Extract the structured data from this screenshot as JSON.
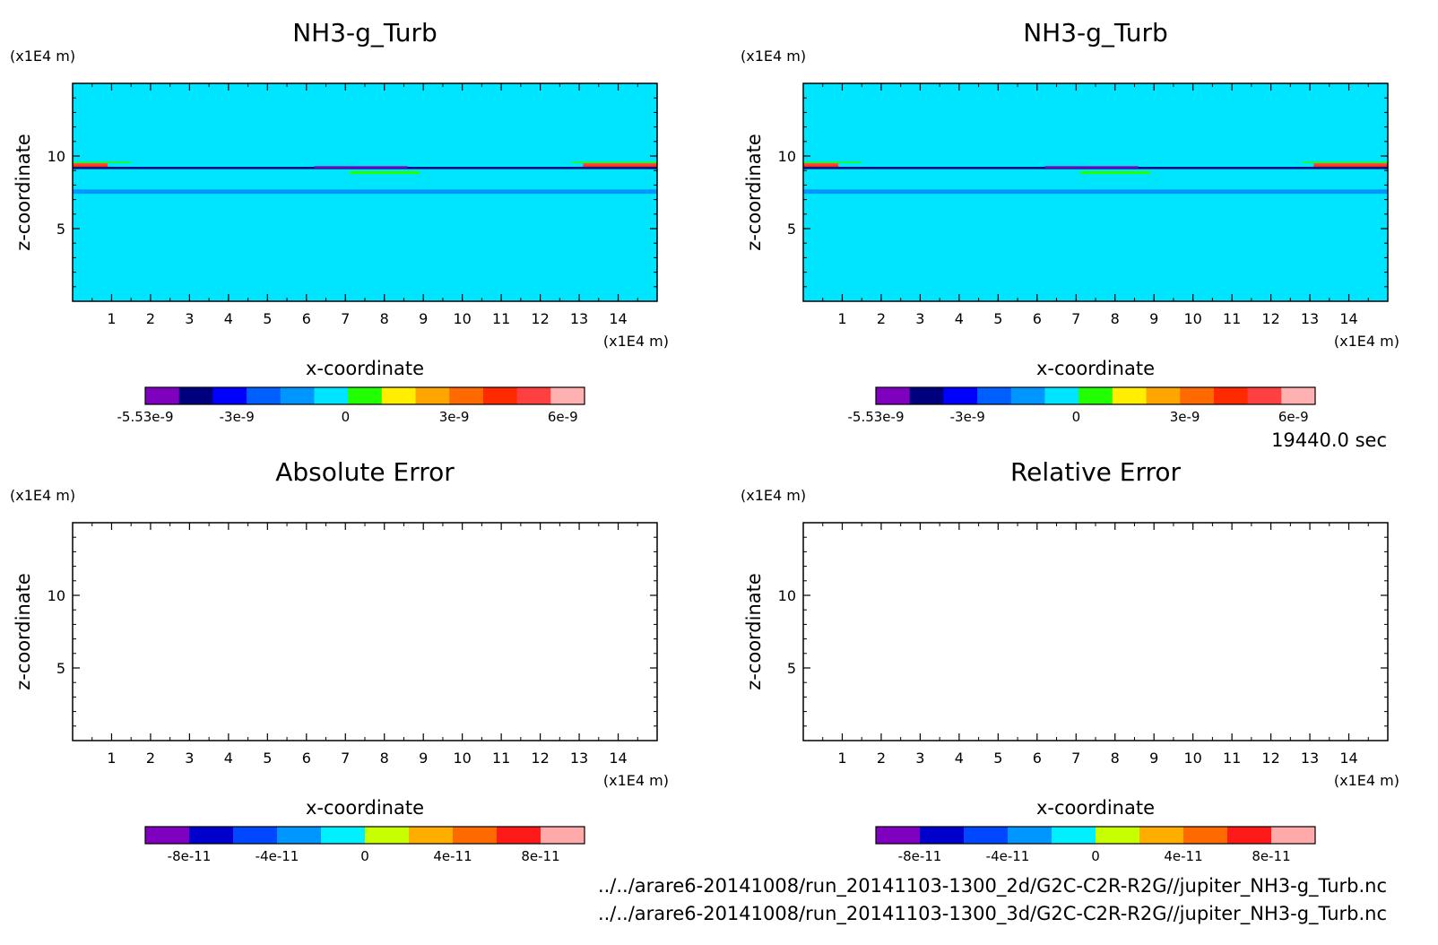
{
  "time_label": "19440.0 sec",
  "file_paths": [
    "../../arare6-20141008/run_20141103-1300_2d/G2C-C2R-R2G//jupiter_NH3-g_Turb.nc",
    "../../arare6-20141008/run_20141103-1300_3d/G2C-C2R-R2G//jupiter_NH3-g_Turb.nc"
  ],
  "palettes": {
    "field": [
      "#7f00bf",
      "#00007f",
      "#0000ff",
      "#0060ff",
      "#0096ff",
      "#00e5ff",
      "#22ff00",
      "#ffee00",
      "#ffa500",
      "#ff6a00",
      "#ff2a00",
      "#ff4040",
      "#ffb0b0"
    ],
    "error": [
      "#7f00bf",
      "#0000cd",
      "#0048ff",
      "#0096ff",
      "#00f0ff",
      "#c8ff00",
      "#ffae00",
      "#ff6a00",
      "#ff1a1a",
      "#ffaaaa"
    ]
  },
  "chart_data": [
    {
      "type": "heatmap",
      "title": "NH3-g_Turb",
      "xlabel": "x-coordinate",
      "ylabel": "z-coordinate",
      "x_unit": "(x1E4 m)",
      "y_unit": "(x1E4 m)",
      "xlim": [
        0,
        15
      ],
      "ylim": [
        0,
        15
      ],
      "x_ticks": [
        1,
        2,
        3,
        4,
        5,
        6,
        7,
        8,
        9,
        10,
        11,
        12,
        13,
        14
      ],
      "y_ticks": [
        5,
        10
      ],
      "levels_min": -5.53e-09,
      "levels_max": 6.6e-09,
      "colorbar_ticks": [
        {
          "value": -5.53e-09,
          "label": "-5.53e-9"
        },
        {
          "value": -3e-09,
          "label": "-3e-9"
        },
        {
          "value": 0,
          "label": "0"
        },
        {
          "value": 3e-09,
          "label": "3e-9"
        },
        {
          "value": 6e-09,
          "label": "6e-9"
        }
      ],
      "palette": "field",
      "background_value": 0,
      "features": [
        {
          "kind": "band",
          "x0": 0,
          "x1": 15,
          "z0": 11.35,
          "z1": 11.85,
          "v": -5e-10
        },
        {
          "kind": "band",
          "x0": 4,
          "x1": 10.5,
          "z0": 11.8,
          "z1": 12.1,
          "v": -5e-10
        },
        {
          "kind": "band",
          "x0": 0,
          "x1": 15,
          "z0": 9.2,
          "z1": 9.55,
          "v": -5e-10
        },
        {
          "kind": "band",
          "x0": 0,
          "x1": 15,
          "z0": 8.65,
          "z1": 9.2,
          "v": -5e-10
        },
        {
          "kind": "band",
          "x0": 0,
          "x1": 15,
          "z0": 7.75,
          "z1": 8.3,
          "v": -5e-10
        },
        {
          "kind": "band",
          "x0": 0,
          "x1": 15,
          "z0": 7.4,
          "z1": 7.7,
          "v": -1.5e-09
        },
        {
          "kind": "band",
          "x0": 0,
          "x1": 15,
          "z0": 9.1,
          "z1": 9.25,
          "v": -4.5e-09
        },
        {
          "kind": "band",
          "x0": 0,
          "x1": 0.9,
          "z0": 9.35,
          "z1": 9.5,
          "v": 5e-09
        },
        {
          "kind": "band",
          "x0": 0,
          "x1": 0.9,
          "z0": 9.25,
          "z1": 9.35,
          "v": 4e-09
        },
        {
          "kind": "band",
          "x0": 13.1,
          "x1": 15,
          "z0": 9.35,
          "z1": 9.5,
          "v": 5e-09
        },
        {
          "kind": "band",
          "x0": 13.1,
          "x1": 15,
          "z0": 9.25,
          "z1": 9.35,
          "v": 4e-09
        },
        {
          "kind": "band",
          "x0": 0,
          "x1": 1.5,
          "z0": 9.5,
          "z1": 9.6,
          "v": 1e-09
        },
        {
          "kind": "band",
          "x0": 12.8,
          "x1": 15,
          "z0": 9.5,
          "z1": 9.6,
          "v": 1e-09
        },
        {
          "kind": "band",
          "x0": 6.2,
          "x1": 8.6,
          "z0": 9.15,
          "z1": 9.3,
          "v": -5e-09
        },
        {
          "kind": "band",
          "x0": 7.1,
          "x1": 8.9,
          "z0": 8.75,
          "z1": 8.95,
          "v": 1e-09
        },
        {
          "kind": "band",
          "x0": 6.9,
          "x1": 9.2,
          "z0": 8.6,
          "z1": 8.75,
          "v": -5e-10
        },
        {
          "kind": "band",
          "x0": 6.8,
          "x1": 8.0,
          "z0": 6.8,
          "z1": 7.05,
          "v": -5e-10
        },
        {
          "kind": "band",
          "x0": 3.2,
          "x1": 3.6,
          "z0": 5.9,
          "z1": 6.1,
          "v": -5e-10
        },
        {
          "kind": "band",
          "x0": 4.1,
          "x1": 4.5,
          "z0": 5.9,
          "z1": 6.1,
          "v": -5e-10
        },
        {
          "kind": "band",
          "x0": 10.6,
          "x1": 11.0,
          "z0": 5.9,
          "z1": 6.1,
          "v": -5e-10
        },
        {
          "kind": "band",
          "x0": 11.5,
          "x1": 11.9,
          "z0": 5.9,
          "z1": 6.1,
          "v": -5e-10
        },
        {
          "kind": "band",
          "x0": 5.6,
          "x1": 9.8,
          "z0": 3.1,
          "z1": 3.4,
          "v": -5e-10
        },
        {
          "kind": "band",
          "x0": 1.5,
          "x1": 12.0,
          "z0": 2.25,
          "z1": 2.55,
          "v": -5e-10
        },
        {
          "kind": "band",
          "x0": 0,
          "x1": 15,
          "z0": 1.45,
          "z1": 1.7,
          "v": -5e-10
        },
        {
          "kind": "band",
          "x0": 0,
          "x1": 15,
          "z0": 0.8,
          "z1": 1.05,
          "v": -5e-10
        },
        {
          "kind": "band",
          "x0": 0,
          "x1": 15,
          "z0": 0.15,
          "z1": 0.4,
          "v": -5e-10
        }
      ]
    },
    {
      "type": "heatmap",
      "title": "NH3-g_Turb",
      "xlabel": "x-coordinate",
      "ylabel": "z-coordinate",
      "x_unit": "(x1E4 m)",
      "y_unit": "(x1E4 m)",
      "xlim": [
        0,
        15
      ],
      "ylim": [
        0,
        15
      ],
      "x_ticks": [
        1,
        2,
        3,
        4,
        5,
        6,
        7,
        8,
        9,
        10,
        11,
        12,
        13,
        14
      ],
      "y_ticks": [
        5,
        10
      ],
      "levels_min": -5.53e-09,
      "levels_max": 6.6e-09,
      "colorbar_ticks": [
        {
          "value": -5.53e-09,
          "label": "-5.53e-9"
        },
        {
          "value": -3e-09,
          "label": "-3e-9"
        },
        {
          "value": 0,
          "label": "0"
        },
        {
          "value": 3e-09,
          "label": "3e-9"
        },
        {
          "value": 6e-09,
          "label": "6e-9"
        }
      ],
      "palette": "field",
      "background_value": 0,
      "features": "same_as_panel_1"
    },
    {
      "type": "heatmap",
      "title": "Absolute Error",
      "xlabel": "x-coordinate",
      "ylabel": "z-coordinate",
      "x_unit": "(x1E4 m)",
      "y_unit": "(x1E4 m)",
      "xlim": [
        0,
        15
      ],
      "ylim": [
        0,
        15
      ],
      "x_ticks": [
        1,
        2,
        3,
        4,
        5,
        6,
        7,
        8,
        9,
        10,
        11,
        12,
        13,
        14
      ],
      "y_ticks": [
        5,
        10
      ],
      "levels_min": -1e-10,
      "levels_max": 1e-10,
      "colorbar_ticks": [
        {
          "value": -8e-11,
          "label": "-8e-11"
        },
        {
          "value": -4e-11,
          "label": "-4e-11"
        },
        {
          "value": 0,
          "label": "0"
        },
        {
          "value": 4e-11,
          "label": "4e-11"
        },
        {
          "value": 8e-11,
          "label": "8e-11"
        }
      ],
      "palette": "error",
      "background_value": null,
      "features": []
    },
    {
      "type": "heatmap",
      "title": "Relative Error",
      "xlabel": "x-coordinate",
      "ylabel": "z-coordinate",
      "x_unit": "(x1E4 m)",
      "y_unit": "(x1E4 m)",
      "xlim": [
        0,
        15
      ],
      "ylim": [
        0,
        15
      ],
      "x_ticks": [
        1,
        2,
        3,
        4,
        5,
        6,
        7,
        8,
        9,
        10,
        11,
        12,
        13,
        14
      ],
      "y_ticks": [
        5,
        10
      ],
      "levels_min": -1e-10,
      "levels_max": 1e-10,
      "colorbar_ticks": [
        {
          "value": -8e-11,
          "label": "-8e-11"
        },
        {
          "value": -4e-11,
          "label": "-4e-11"
        },
        {
          "value": 0,
          "label": "0"
        },
        {
          "value": 4e-11,
          "label": "4e-11"
        },
        {
          "value": 8e-11,
          "label": "8e-11"
        }
      ],
      "palette": "error",
      "background_value": null,
      "features": []
    }
  ]
}
